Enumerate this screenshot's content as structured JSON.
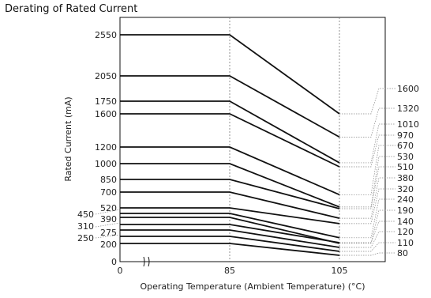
{
  "chart_data": {
    "type": "line",
    "title": "Derating of Rated Current",
    "xlabel": "Operating Temperature (Ambient Temperature) (°C)",
    "ylabel": "Rated Current (mA)",
    "x_ticks": [
      "0",
      "85",
      "105"
    ],
    "x_points": [
      0,
      85,
      105
    ],
    "y_tick_labels": [
      "2550",
      "2050",
      "1750",
      "1600",
      "1200",
      "1000",
      "850",
      "700",
      "520",
      "450",
      "390",
      "310",
      "275",
      "250",
      "200",
      "0"
    ],
    "series": [
      {
        "values": [
          2550,
          2550,
          1600
        ]
      },
      {
        "values": [
          2050,
          2050,
          1320
        ]
      },
      {
        "values": [
          1750,
          1750,
          1010
        ]
      },
      {
        "values": [
          1600,
          1600,
          970
        ]
      },
      {
        "values": [
          1200,
          1200,
          670
        ]
      },
      {
        "values": [
          1000,
          1000,
          530
        ]
      },
      {
        "values": [
          850,
          850,
          510
        ]
      },
      {
        "values": [
          700,
          700,
          380
        ]
      },
      {
        "values": [
          520,
          520,
          320
        ]
      },
      {
        "values": [
          450,
          450,
          240
        ]
      },
      {
        "values": [
          390,
          390,
          190
        ]
      },
      {
        "values": [
          310,
          310,
          140
        ]
      },
      {
        "values": [
          275,
          275,
          120
        ]
      },
      {
        "values": [
          250,
          250,
          110
        ]
      },
      {
        "values": [
          200,
          200,
          80
        ]
      }
    ],
    "right_labels": [
      "1600",
      "1320",
      "1010",
      "970",
      "670",
      "530",
      "510",
      "380",
      "320",
      "240",
      "190",
      "140",
      "120",
      "110",
      "80"
    ],
    "axis_break": true
  }
}
